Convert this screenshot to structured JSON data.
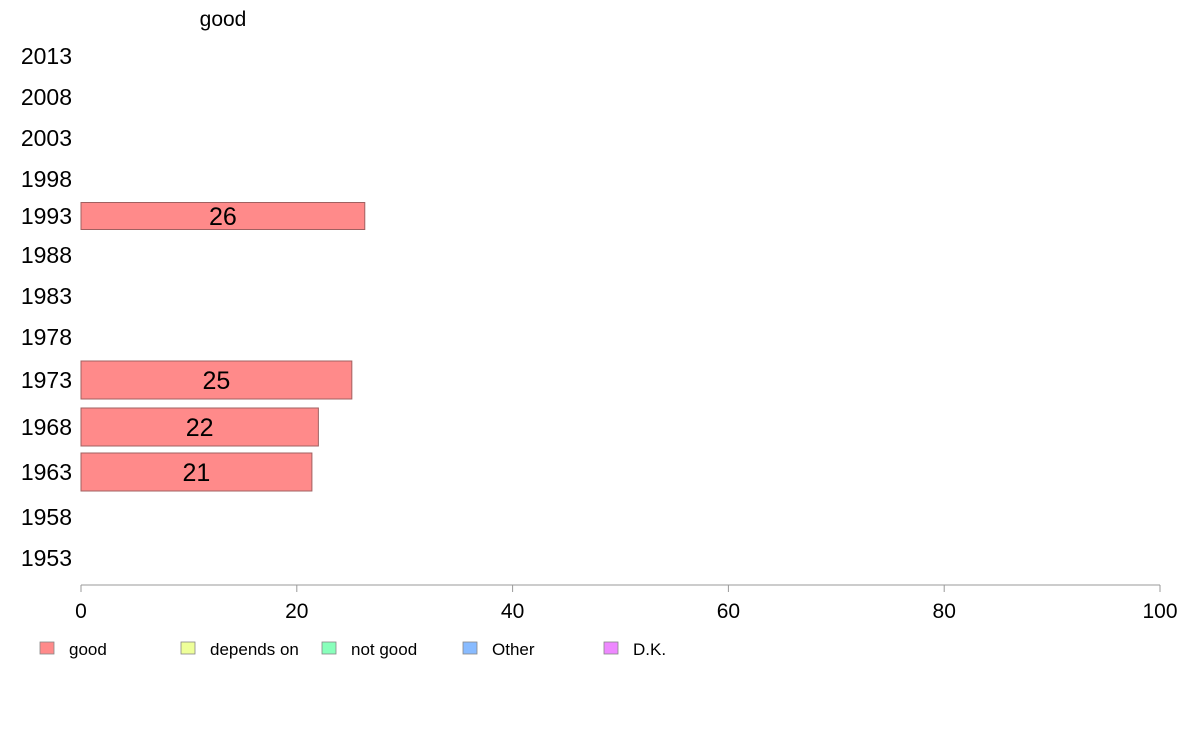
{
  "chart_data": {
    "type": "bar",
    "orientation": "horizontal",
    "panel_title": "good",
    "categories": [
      "2013",
      "2008",
      "2003",
      "1998",
      "1993",
      "1988",
      "1983",
      "1978",
      "1973",
      "1968",
      "1963",
      "1958",
      "1953"
    ],
    "series": [
      {
        "name": "good",
        "color": "#ff8a8a",
        "values": [
          null,
          null,
          null,
          null,
          26.3,
          null,
          null,
          null,
          25.1,
          22.0,
          21.4,
          null,
          null
        ],
        "labels": [
          "",
          "",
          "",
          "",
          "26",
          "",
          "",
          "",
          "25",
          "22",
          "21",
          "",
          ""
        ]
      }
    ],
    "xlim": [
      0,
      100
    ],
    "xticks": [
      "0",
      "20",
      "40",
      "60",
      "80",
      "100"
    ],
    "xtick_values": [
      0,
      20,
      40,
      60,
      80,
      100
    ],
    "grid": false,
    "legend_position": "bottom",
    "legend": [
      {
        "label": "good",
        "color": "#ff8a8a"
      },
      {
        "label": "depends on",
        "color": "#eeff99"
      },
      {
        "label": "not good",
        "color": "#88ffbb"
      },
      {
        "label": "Other",
        "color": "#88bbff"
      },
      {
        "label": "D.K.",
        "color": "#ee88ff"
      }
    ]
  }
}
